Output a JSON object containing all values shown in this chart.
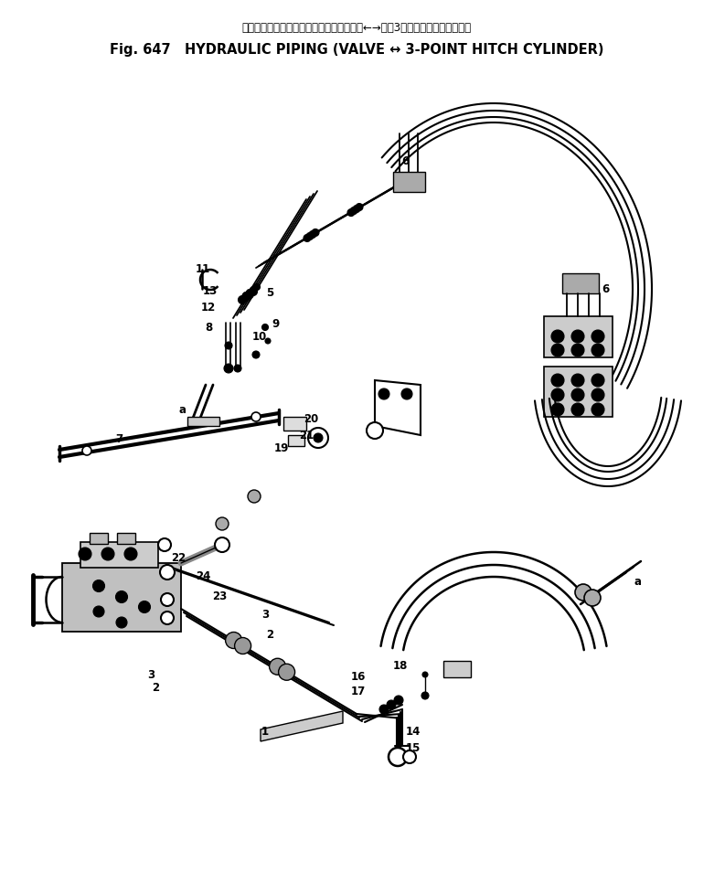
{
  "title_line1": "ハイドロリック　パイピング　バルブ　　←→　　3点　　ヒッチ　シリンダ",
  "title_line2": "Fig. 647   HYDRAULIC PIPING (VALVE ↔ 3-POINT HITCH CYLINDER)",
  "bg_color": "#ffffff",
  "lc": "#000000",
  "fig_width": 7.81,
  "fig_height": 9.66,
  "dpi": 100
}
